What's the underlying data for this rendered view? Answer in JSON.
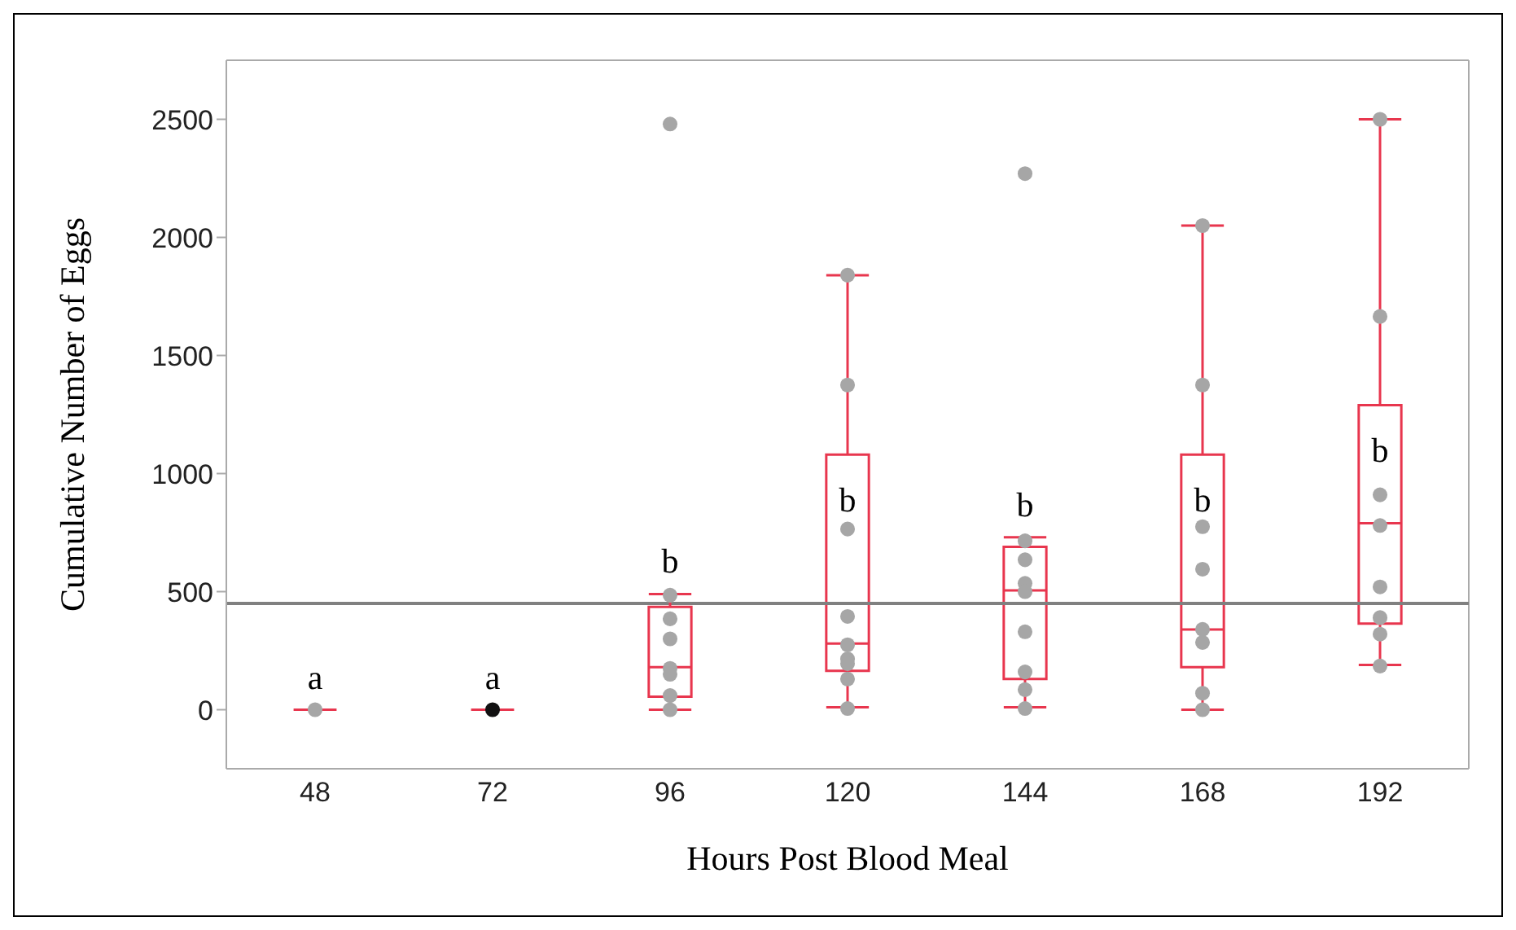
{
  "chart_data": {
    "type": "box",
    "xlabel": "Hours Post Blood Meal",
    "ylabel": "Cumulative Number of Eggs",
    "categories": [
      "48",
      "72",
      "96",
      "120",
      "144",
      "168",
      "192"
    ],
    "color": "#e8364e",
    "boxes": [
      {
        "low": 0,
        "q1": 0,
        "median": 0,
        "q3": 0,
        "high": 0
      },
      {
        "low": 0,
        "q1": 0,
        "median": 0,
        "q3": 0,
        "high": 0
      },
      {
        "low": 0,
        "q1": 55,
        "median": 180,
        "q3": 435,
        "high": 490
      },
      {
        "low": 10,
        "q1": 165,
        "median": 280,
        "q3": 1080,
        "high": 1840
      },
      {
        "low": 10,
        "q1": 130,
        "median": 505,
        "q3": 690,
        "high": 730
      },
      {
        "low": 0,
        "q1": 180,
        "median": 340,
        "q3": 1080,
        "high": 2050
      },
      {
        "low": 190,
        "q1": 365,
        "median": 790,
        "q3": 1290,
        "high": 2500
      }
    ],
    "series": [
      {
        "type": "scatter",
        "x": [
          "48",
          "72",
          "96",
          "96",
          "96",
          "96",
          "96",
          "96",
          "96",
          "96",
          "120",
          "120",
          "120",
          "120",
          "120",
          "120",
          "120",
          "120",
          "120",
          "144",
          "144",
          "144",
          "144",
          "144",
          "144",
          "144",
          "144",
          "144",
          "168",
          "168",
          "168",
          "168",
          "168",
          "168",
          "168",
          "168",
          "192",
          "192",
          "192",
          "192",
          "192",
          "192",
          "192",
          "192"
        ],
        "values": [
          0,
          0,
          2480,
          485,
          385,
          300,
          175,
          150,
          60,
          0,
          1840,
          1375,
          765,
          395,
          275,
          215,
          195,
          130,
          5,
          2270,
          715,
          635,
          535,
          500,
          330,
          160,
          85,
          5,
          2050,
          1375,
          775,
          595,
          340,
          285,
          70,
          0,
          2500,
          1665,
          910,
          780,
          520,
          390,
          320,
          185
        ],
        "colors": [
          "#a6a6a6",
          "#111111",
          "#a6a6a6",
          "#a6a6a6",
          "#a6a6a6",
          "#a6a6a6",
          "#a6a6a6",
          "#a6a6a6",
          "#a6a6a6",
          "#a6a6a6",
          "#a6a6a6",
          "#a6a6a6",
          "#a6a6a6",
          "#a6a6a6",
          "#a6a6a6",
          "#a6a6a6",
          "#a6a6a6",
          "#a6a6a6",
          "#a6a6a6",
          "#a6a6a6",
          "#a6a6a6",
          "#a6a6a6",
          "#a6a6a6",
          "#a6a6a6",
          "#a6a6a6",
          "#a6a6a6",
          "#a6a6a6",
          "#a6a6a6",
          "#a6a6a6",
          "#a6a6a6",
          "#a6a6a6",
          "#a6a6a6",
          "#a6a6a6",
          "#a6a6a6",
          "#a6a6a6",
          "#a6a6a6",
          "#a6a6a6",
          "#a6a6a6",
          "#a6a6a6",
          "#a6a6a6",
          "#a6a6a6",
          "#a6a6a6",
          "#a6a6a6",
          "#a6a6a6"
        ]
      }
    ],
    "ylim": [
      -250,
      2750
    ],
    "yticks": [
      0,
      500,
      1000,
      1500,
      2000,
      2500
    ],
    "ref_lines": [
      {
        "axis": "y",
        "value": 450,
        "color": "#808080"
      }
    ],
    "annotations": [
      "a",
      "a",
      "b",
      "b",
      "b",
      "b",
      "b"
    ],
    "grid": false,
    "marker": "circle"
  }
}
